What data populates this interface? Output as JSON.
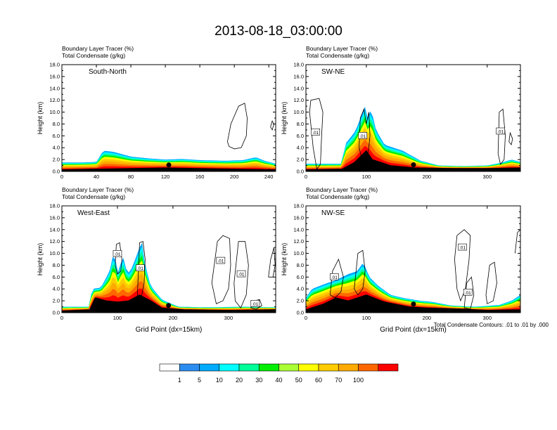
{
  "figure": {
    "title": "2013-08-18_03:00:00",
    "contour_note": "Total Condensate Contours: .01 to .01 by .000",
    "xlabel": "Grid Point (dx=15km)"
  },
  "colorbar": {
    "labels": [
      "1",
      "5",
      "10",
      "20",
      "30",
      "40",
      "50",
      "60",
      "70",
      "100"
    ],
    "colors": [
      "#ffffff",
      "#2a8cf0",
      "#00aaff",
      "#00ffff",
      "#00ff99",
      "#00ee00",
      "#aaff33",
      "#ffff00",
      "#ffcc00",
      "#ffaa00",
      "#ff6600",
      "#ff0000"
    ]
  },
  "chart_data": [
    {
      "type": "heatmap",
      "name": "South-North",
      "title_line1": "Boundary Layer Tracer   (%)",
      "title_line2": "Total Condensate   (g/kg)",
      "xlabel": "",
      "ylabel": "Height (km)",
      "xlim": [
        0,
        248
      ],
      "ylim": [
        0,
        18
      ],
      "xticks": [
        "0",
        "40",
        "80",
        "120",
        "160",
        "200",
        "240"
      ],
      "xtick_values": [
        0,
        40,
        80,
        120,
        160,
        200,
        240
      ],
      "yticks": [
        "0.0",
        "2.0",
        "4.0",
        "6.0",
        "8.0",
        "10.0",
        "12.0",
        "14.0",
        "16.0",
        "18.0"
      ],
      "terrain": [
        [
          0,
          0.3
        ],
        [
          40,
          0.4
        ],
        [
          80,
          0.5
        ],
        [
          120,
          0.6
        ],
        [
          160,
          0.5
        ],
        [
          200,
          0.4
        ],
        [
          248,
          0.3
        ]
      ],
      "tracer_top": [
        [
          0,
          1.5
        ],
        [
          20,
          1.5
        ],
        [
          40,
          1.6
        ],
        [
          48,
          3.5
        ],
        [
          60,
          3.3
        ],
        [
          80,
          2.5
        ],
        [
          100,
          2.2
        ],
        [
          120,
          2.0
        ],
        [
          140,
          2.1
        ],
        [
          160,
          1.9
        ],
        [
          190,
          1.8
        ],
        [
          210,
          1.9
        ],
        [
          225,
          2.4
        ],
        [
          235,
          1.8
        ],
        [
          248,
          1.3
        ]
      ],
      "marker_x": 124,
      "condensate_contours": [
        {
          "label": "",
          "points": [
            [
              192,
              5
            ],
            [
              196,
              8
            ],
            [
              205,
              11
            ],
            [
              212,
              11.5
            ],
            [
              215,
              9
            ],
            [
              214,
              6
            ],
            [
              208,
              4
            ],
            [
              200,
              3.8
            ],
            [
              194,
              4.2
            ],
            [
              192,
              5
            ]
          ]
        },
        {
          "label": "",
          "points": [
            [
              242,
              7.5
            ],
            [
              244,
              8.5
            ],
            [
              246,
              8
            ],
            [
              244,
              7
            ],
            [
              242,
              7.5
            ]
          ]
        }
      ]
    },
    {
      "type": "heatmap",
      "name": "SW-NE",
      "title_line1": "Boundary Layer Tracer   (%)",
      "title_line2": "Total Condensate   (g/kg)",
      "xlabel": "",
      "ylabel": "Height (km)",
      "xlim": [
        0,
        355
      ],
      "ylim": [
        0,
        18
      ],
      "xticks": [
        "0",
        "100",
        "200",
        "300"
      ],
      "xtick_values": [
        0,
        100,
        200,
        300
      ],
      "yticks": [
        "0.0",
        "2.0",
        "4.0",
        "6.0",
        "8.0",
        "10.0",
        "12.0",
        "14.0",
        "16.0",
        "18.0"
      ],
      "terrain": [
        [
          0,
          0.3
        ],
        [
          60,
          0.4
        ],
        [
          80,
          1.5
        ],
        [
          90,
          2.5
        ],
        [
          100,
          3.5
        ],
        [
          110,
          2.0
        ],
        [
          140,
          1.0
        ],
        [
          180,
          0.6
        ],
        [
          250,
          0.5
        ],
        [
          300,
          0.5
        ],
        [
          355,
          0.6
        ]
      ],
      "tracer_top": [
        [
          0,
          1.3
        ],
        [
          60,
          1.3
        ],
        [
          64,
          4.5
        ],
        [
          72,
          5.5
        ],
        [
          82,
          6.8
        ],
        [
          92,
          9.5
        ],
        [
          98,
          11
        ],
        [
          102,
          9
        ],
        [
          108,
          10.5
        ],
        [
          116,
          7
        ],
        [
          130,
          4.5
        ],
        [
          160,
          3.5
        ],
        [
          190,
          1.8
        ],
        [
          220,
          1.0
        ],
        [
          260,
          0.9
        ],
        [
          300,
          1.0
        ],
        [
          325,
          1.5
        ],
        [
          340,
          2.0
        ],
        [
          355,
          1.6
        ]
      ],
      "marker_x": 178,
      "condensate_contours": [
        {
          "label": ".01",
          "points": [
            [
              8,
              12
            ],
            [
              22,
              12.3
            ],
            [
              28,
              10
            ],
            [
              26,
              6
            ],
            [
              24,
              1.2
            ],
            [
              18,
              0.4
            ],
            [
              12,
              4
            ],
            [
              8,
              8
            ],
            [
              6,
              10
            ],
            [
              8,
              12
            ]
          ]
        },
        {
          "label": ".01",
          "points": [
            [
              88,
              4
            ],
            [
              90,
              9
            ],
            [
              96,
              10.5
            ],
            [
              100,
              8
            ],
            [
              104,
              10
            ],
            [
              106,
              6
            ],
            [
              102,
              2
            ],
            [
              94,
              1.5
            ],
            [
              88,
              4
            ]
          ]
        },
        {
          "label": ".01",
          "points": [
            [
              318,
              3
            ],
            [
              320,
              10
            ],
            [
              326,
              10.5
            ],
            [
              330,
              6
            ],
            [
              328,
              2
            ],
            [
              322,
              1.2
            ],
            [
              318,
              3
            ]
          ]
        },
        {
          "label": "",
          "points": [
            [
              336,
              5
            ],
            [
              338,
              6.5
            ],
            [
              342,
              5.5
            ],
            [
              340,
              4.5
            ],
            [
              336,
              5
            ]
          ]
        }
      ]
    },
    {
      "type": "heatmap",
      "name": "West-East",
      "title_line1": "Boundary Layer Tracer   (%)",
      "title_line2": "Total Condensate   (g/kg)",
      "xlabel": "Grid Point (dx=15km)",
      "ylabel": "Height (km)",
      "xlim": [
        0,
        385
      ],
      "ylim": [
        0,
        18
      ],
      "xticks": [
        "0",
        "100",
        "200",
        "300"
      ],
      "xtick_values": [
        0,
        100,
        200,
        300
      ],
      "yticks": [
        "0.0",
        "2.0",
        "4.0",
        "6.0",
        "8.0",
        "10.0",
        "12.0",
        "14.0",
        "16.0",
        "18.0"
      ],
      "terrain": [
        [
          0,
          0.3
        ],
        [
          50,
          0.5
        ],
        [
          60,
          2.5
        ],
        [
          80,
          2.0
        ],
        [
          100,
          1.8
        ],
        [
          120,
          2.0
        ],
        [
          140,
          3.0
        ],
        [
          160,
          2.0
        ],
        [
          180,
          0.8
        ],
        [
          220,
          0.5
        ],
        [
          300,
          0.4
        ],
        [
          385,
          0.5
        ]
      ],
      "tracer_top": [
        [
          0,
          1.0
        ],
        [
          50,
          1.0
        ],
        [
          54,
          4.0
        ],
        [
          70,
          4.2
        ],
        [
          86,
          7.0
        ],
        [
          94,
          10.5
        ],
        [
          100,
          6.5
        ],
        [
          110,
          9.5
        ],
        [
          118,
          6.5
        ],
        [
          126,
          7.5
        ],
        [
          136,
          10
        ],
        [
          144,
          12
        ],
        [
          150,
          8
        ],
        [
          160,
          4.5
        ],
        [
          180,
          2.2
        ],
        [
          195,
          1.6
        ],
        [
          210,
          1.0
        ],
        [
          260,
          0.9
        ],
        [
          330,
          1.0
        ],
        [
          385,
          0.9
        ]
      ],
      "marker_x": 192,
      "condensate_contours": [
        {
          "label": ".01",
          "points": [
            [
              96,
              8
            ],
            [
              98,
              11.5
            ],
            [
              104,
              11.8
            ],
            [
              108,
              9
            ],
            [
              106,
              7
            ],
            [
              100,
              6.5
            ],
            [
              96,
              8
            ]
          ]
        },
        {
          "label": ".01",
          "points": [
            [
              136,
              3
            ],
            [
              140,
              11.8
            ],
            [
              146,
              12
            ],
            [
              150,
              9
            ],
            [
              148,
              5
            ],
            [
              142,
              2
            ],
            [
              136,
              3
            ]
          ]
        },
        {
          "label": ".01",
          "points": [
            [
              270,
              5
            ],
            [
              280,
              12
            ],
            [
              290,
              13
            ],
            [
              302,
              12.5
            ],
            [
              304,
              8
            ],
            [
              300,
              4
            ],
            [
              290,
              2
            ],
            [
              278,
              1.5
            ],
            [
              270,
              5
            ]
          ]
        },
        {
          "label": ".01",
          "points": [
            [
              310,
              5
            ],
            [
              318,
              12
            ],
            [
              330,
              12
            ],
            [
              336,
              8
            ],
            [
              332,
              3
            ],
            [
              322,
              0.8
            ],
            [
              312,
              2
            ],
            [
              310,
              5
            ]
          ]
        },
        {
          "label": ".01",
          "points": [
            [
              340,
              0.8
            ],
            [
              346,
              2
            ],
            [
              356,
              2.2
            ],
            [
              360,
              1.2
            ],
            [
              350,
              0.6
            ],
            [
              340,
              0.8
            ]
          ]
        },
        {
          "label": "",
          "points": [
            [
              372,
              6
            ],
            [
              376,
              9
            ],
            [
              382,
              11
            ],
            [
              384,
              8
            ],
            [
              380,
              6
            ],
            [
              372,
              6
            ]
          ]
        }
      ]
    },
    {
      "type": "heatmap",
      "name": "NW-SE",
      "title_line1": "Boundary Layer Tracer   (%)",
      "title_line2": "Total Condensate   (g/kg)",
      "xlabel": "Grid Point (dx=15km)",
      "ylabel": "Height (km)",
      "xlim": [
        0,
        355
      ],
      "ylim": [
        0,
        18
      ],
      "xticks": [
        "0",
        "100",
        "200",
        "300"
      ],
      "xtick_values": [
        0,
        100,
        200,
        300
      ],
      "yticks": [
        "0.0",
        "2.0",
        "4.0",
        "6.0",
        "8.0",
        "10.0",
        "12.0",
        "14.0",
        "16.0",
        "18.0"
      ],
      "terrain": [
        [
          0,
          0.5
        ],
        [
          30,
          1.5
        ],
        [
          50,
          2.5
        ],
        [
          70,
          2.0
        ],
        [
          100,
          3.0
        ],
        [
          130,
          1.8
        ],
        [
          170,
          1.0
        ],
        [
          200,
          0.8
        ],
        [
          260,
          0.6
        ],
        [
          300,
          0.4
        ],
        [
          355,
          0.5
        ]
      ],
      "tracer_top": [
        [
          0,
          2.5
        ],
        [
          10,
          4.0
        ],
        [
          30,
          4.8
        ],
        [
          50,
          5.5
        ],
        [
          70,
          6.5
        ],
        [
          85,
          7.0
        ],
        [
          95,
          8.5
        ],
        [
          105,
          6.0
        ],
        [
          120,
          4.5
        ],
        [
          140,
          3.0
        ],
        [
          160,
          2.5
        ],
        [
          190,
          2.0
        ],
        [
          210,
          1.8
        ],
        [
          240,
          1.2
        ],
        [
          280,
          1.0
        ],
        [
          320,
          1.3
        ],
        [
          340,
          2.0
        ],
        [
          355,
          3.0
        ]
      ],
      "marker_x": 178,
      "condensate_contours": [
        {
          "label": ".01",
          "points": [
            [
              40,
              3
            ],
            [
              44,
              7
            ],
            [
              54,
              9
            ],
            [
              62,
              6
            ],
            [
              58,
              3.5
            ],
            [
              48,
              2.5
            ],
            [
              40,
              3
            ]
          ]
        },
        {
          "label": "",
          "points": [
            [
              80,
              4
            ],
            [
              86,
              10
            ],
            [
              94,
              10.5
            ],
            [
              98,
              7
            ],
            [
              94,
              4
            ],
            [
              86,
              3
            ],
            [
              80,
              4
            ]
          ]
        },
        {
          "label": ".01",
          "points": [
            [
              246,
              9
            ],
            [
              250,
              13
            ],
            [
              262,
              14
            ],
            [
              272,
              13
            ],
            [
              270,
              9
            ],
            [
              264,
              4
            ],
            [
              256,
              2
            ],
            [
              250,
              4
            ],
            [
              246,
              9
            ]
          ]
        },
        {
          "label": ".01",
          "points": [
            [
              262,
              0.8
            ],
            [
              266,
              5
            ],
            [
              274,
              6
            ],
            [
              278,
              3
            ],
            [
              272,
              0.6
            ],
            [
              262,
              0.8
            ]
          ]
        },
        {
          "label": "",
          "points": [
            [
              298,
              3
            ],
            [
              304,
              8
            ],
            [
              312,
              8.5
            ],
            [
              316,
              5
            ],
            [
              310,
              2
            ],
            [
              300,
              1.5
            ],
            [
              298,
              3
            ]
          ]
        },
        {
          "label": "",
          "points": [
            [
              346,
              10
            ],
            [
              350,
              13.5
            ],
            [
              355,
              14
            ]
          ]
        }
      ]
    }
  ]
}
